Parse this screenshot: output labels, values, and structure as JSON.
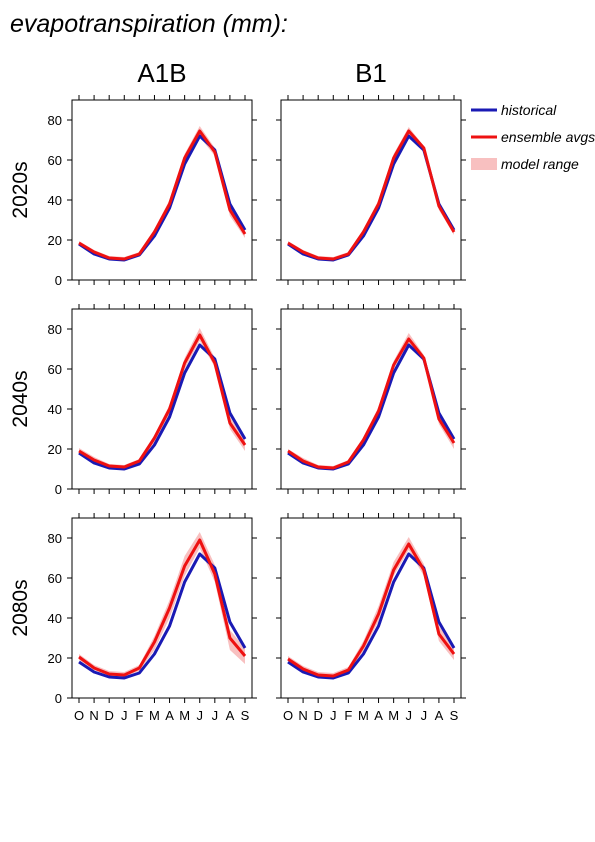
{
  "title": "evapotranspiration (mm):",
  "chart_data": {
    "type": "line",
    "title": "evapotranspiration (mm):",
    "columns": [
      "A1B",
      "B1"
    ],
    "rows": [
      "2020s",
      "2040s",
      "2080s"
    ],
    "categories": [
      "O",
      "N",
      "D",
      "J",
      "F",
      "M",
      "A",
      "M",
      "J",
      "J",
      "A",
      "S"
    ],
    "ylim": [
      0,
      90
    ],
    "yticks": [
      0,
      20,
      40,
      60,
      80
    ],
    "grid": false,
    "legend_position": "right",
    "legend": [
      {
        "label": "historical",
        "kind": "line",
        "color": "#1a1ab4"
      },
      {
        "label": "ensemble avgs",
        "kind": "line",
        "color": "#ee1111"
      },
      {
        "label": "model range",
        "kind": "band",
        "color": "#f8c0c0"
      }
    ],
    "historical": [
      18,
      13,
      10.5,
      10,
      12.5,
      22,
      36,
      58,
      72,
      65,
      38,
      25
    ],
    "panels": [
      {
        "row": "2020s",
        "column": "A1B",
        "ensemble": [
          18.5,
          14,
          11,
          10.5,
          13,
          24,
          38,
          61,
          74.5,
          64,
          35,
          23
        ],
        "range_low": [
          17.5,
          13,
          10,
          9.5,
          12,
          22,
          35.5,
          58,
          71.5,
          62,
          32,
          21
        ],
        "range_high": [
          19.5,
          15,
          12,
          11.5,
          14,
          25.5,
          40,
          63,
          77,
          66,
          38,
          25
        ]
      },
      {
        "row": "2020s",
        "column": "B1",
        "ensemble": [
          18.5,
          14,
          11,
          10.5,
          13,
          24,
          38,
          61,
          74.5,
          66,
          37,
          24
        ],
        "range_low": [
          17.5,
          13,
          10,
          9.5,
          12,
          22.5,
          36,
          59,
          72.5,
          64,
          35,
          22.5
        ],
        "range_high": [
          19.5,
          15,
          12,
          11.5,
          14,
          25.5,
          40,
          63,
          76.5,
          67,
          39,
          25.5
        ]
      },
      {
        "row": "2040s",
        "column": "A1B",
        "ensemble": [
          19,
          14.5,
          11.5,
          11,
          14,
          25.5,
          40,
          63,
          77,
          63,
          33,
          22
        ],
        "range_low": [
          18,
          13.5,
          10.5,
          10,
          13,
          23,
          37,
          60,
          74,
          61,
          30,
          19
        ],
        "range_high": [
          20.5,
          16,
          12.5,
          12,
          15,
          27,
          42,
          65.5,
          80.5,
          65.5,
          36,
          25
        ]
      },
      {
        "row": "2040s",
        "column": "B1",
        "ensemble": [
          19,
          14,
          11,
          10.5,
          13.5,
          24.5,
          39,
          62,
          75,
          65.5,
          35,
          23
        ],
        "range_low": [
          18,
          13,
          10,
          9.5,
          12.5,
          23,
          37,
          60,
          72.5,
          63.5,
          32.5,
          20
        ],
        "range_high": [
          20,
          15.5,
          12,
          11.5,
          14.5,
          26,
          41,
          64,
          78,
          67,
          37.5,
          26
        ]
      },
      {
        "row": "2080s",
        "column": "A1B",
        "ensemble": [
          20.5,
          15,
          12,
          11.5,
          15,
          28,
          45,
          66,
          79,
          62,
          30,
          21
        ],
        "range_low": [
          19,
          14,
          11,
          10.5,
          13.5,
          24,
          40,
          61,
          75,
          58,
          24,
          17
        ],
        "range_high": [
          22,
          16.5,
          13.5,
          13,
          16.5,
          31,
          49,
          71,
          83,
          66.5,
          34,
          25
        ]
      },
      {
        "row": "2080s",
        "column": "B1",
        "ensemble": [
          19.5,
          14.5,
          11.5,
          11,
          14,
          26,
          42,
          64,
          77,
          64,
          32,
          22
        ],
        "range_low": [
          18.5,
          13.5,
          10.5,
          10,
          13,
          23.5,
          38.5,
          61,
          74,
          61,
          28.5,
          19
        ],
        "range_high": [
          21,
          16,
          13,
          12.5,
          15.5,
          28.5,
          46,
          68,
          80.5,
          67,
          36,
          25.5
        ]
      }
    ]
  }
}
